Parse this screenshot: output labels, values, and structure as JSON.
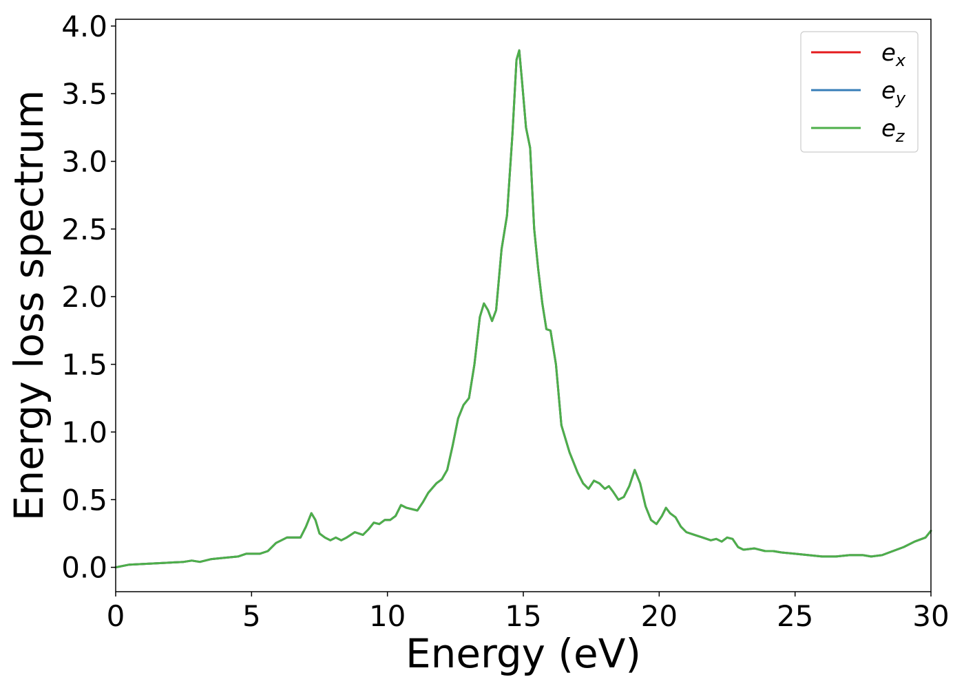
{
  "chart_data": {
    "type": "line",
    "xlabel": "Energy (eV)",
    "ylabel": "Energy loss spectrum",
    "xlim": [
      0,
      30
    ],
    "ylim": [
      -0.18,
      4.05
    ],
    "xticks": [
      0,
      5,
      10,
      15,
      20,
      25,
      30
    ],
    "xtick_labels": [
      "0",
      "5",
      "10",
      "15",
      "20",
      "25",
      "30"
    ],
    "yticks": [
      0.0,
      0.5,
      1.0,
      1.5,
      2.0,
      2.5,
      3.0,
      3.5,
      4.0
    ],
    "ytick_labels": [
      "0.0",
      "0.5",
      "1.0",
      "1.5",
      "2.0",
      "2.5",
      "3.0",
      "3.5",
      "4.0"
    ],
    "grid": false,
    "legend_position": "top-right",
    "series": [
      {
        "name": "e_x",
        "base": "e",
        "sub": "x",
        "color": "#e41a1c"
      },
      {
        "name": "e_y",
        "base": "e",
        "sub": "y",
        "color": "#377eb8"
      },
      {
        "name": "e_z",
        "base": "e",
        "sub": "z",
        "color": "#4daf4a"
      }
    ],
    "x": [
      0,
      0.5,
      1,
      1.5,
      2,
      2.5,
      2.8,
      3.1,
      3.5,
      4,
      4.5,
      4.8,
      5,
      5.3,
      5.6,
      5.9,
      6.1,
      6.3,
      6.5,
      6.8,
      7.0,
      7.2,
      7.35,
      7.5,
      7.7,
      7.9,
      8.1,
      8.3,
      8.5,
      8.8,
      9.1,
      9.3,
      9.5,
      9.7,
      9.9,
      10.1,
      10.3,
      10.5,
      10.7,
      10.9,
      11.1,
      11.3,
      11.5,
      11.8,
      12.0,
      12.2,
      12.4,
      12.6,
      12.8,
      13.0,
      13.2,
      13.4,
      13.55,
      13.7,
      13.85,
      14.0,
      14.2,
      14.4,
      14.6,
      14.75,
      14.85,
      14.95,
      15.1,
      15.25,
      15.4,
      15.55,
      15.7,
      15.85,
      16.0,
      16.2,
      16.4,
      16.7,
      17.0,
      17.2,
      17.4,
      17.6,
      17.8,
      18.0,
      18.15,
      18.3,
      18.5,
      18.7,
      18.9,
      19.1,
      19.3,
      19.5,
      19.7,
      19.9,
      20.1,
      20.25,
      20.4,
      20.6,
      20.8,
      21.0,
      21.3,
      21.6,
      21.9,
      22.1,
      22.3,
      22.5,
      22.7,
      22.9,
      23.1,
      23.5,
      23.9,
      24.2,
      24.5,
      25.0,
      25.5,
      26.0,
      26.5,
      27.0,
      27.5,
      27.8,
      28.2,
      28.6,
      29.0,
      29.4,
      29.8,
      30.0
    ],
    "values": [
      0.0,
      0.02,
      0.025,
      0.03,
      0.035,
      0.04,
      0.05,
      0.04,
      0.06,
      0.07,
      0.08,
      0.1,
      0.1,
      0.1,
      0.12,
      0.18,
      0.2,
      0.22,
      0.22,
      0.22,
      0.3,
      0.4,
      0.35,
      0.25,
      0.22,
      0.2,
      0.22,
      0.2,
      0.22,
      0.26,
      0.24,
      0.28,
      0.33,
      0.32,
      0.35,
      0.35,
      0.38,
      0.46,
      0.44,
      0.43,
      0.42,
      0.48,
      0.55,
      0.62,
      0.65,
      0.72,
      0.9,
      1.1,
      1.2,
      1.25,
      1.5,
      1.85,
      1.95,
      1.9,
      1.82,
      1.9,
      2.35,
      2.6,
      3.2,
      3.75,
      3.82,
      3.6,
      3.25,
      3.1,
      2.5,
      2.2,
      1.95,
      1.76,
      1.75,
      1.5,
      1.05,
      0.85,
      0.7,
      0.62,
      0.58,
      0.64,
      0.62,
      0.58,
      0.6,
      0.56,
      0.5,
      0.52,
      0.6,
      0.72,
      0.62,
      0.45,
      0.35,
      0.32,
      0.38,
      0.44,
      0.4,
      0.37,
      0.3,
      0.26,
      0.24,
      0.22,
      0.2,
      0.21,
      0.19,
      0.22,
      0.21,
      0.15,
      0.13,
      0.14,
      0.12,
      0.12,
      0.11,
      0.1,
      0.09,
      0.08,
      0.08,
      0.09,
      0.09,
      0.08,
      0.09,
      0.12,
      0.15,
      0.19,
      0.22,
      0.27
    ]
  }
}
